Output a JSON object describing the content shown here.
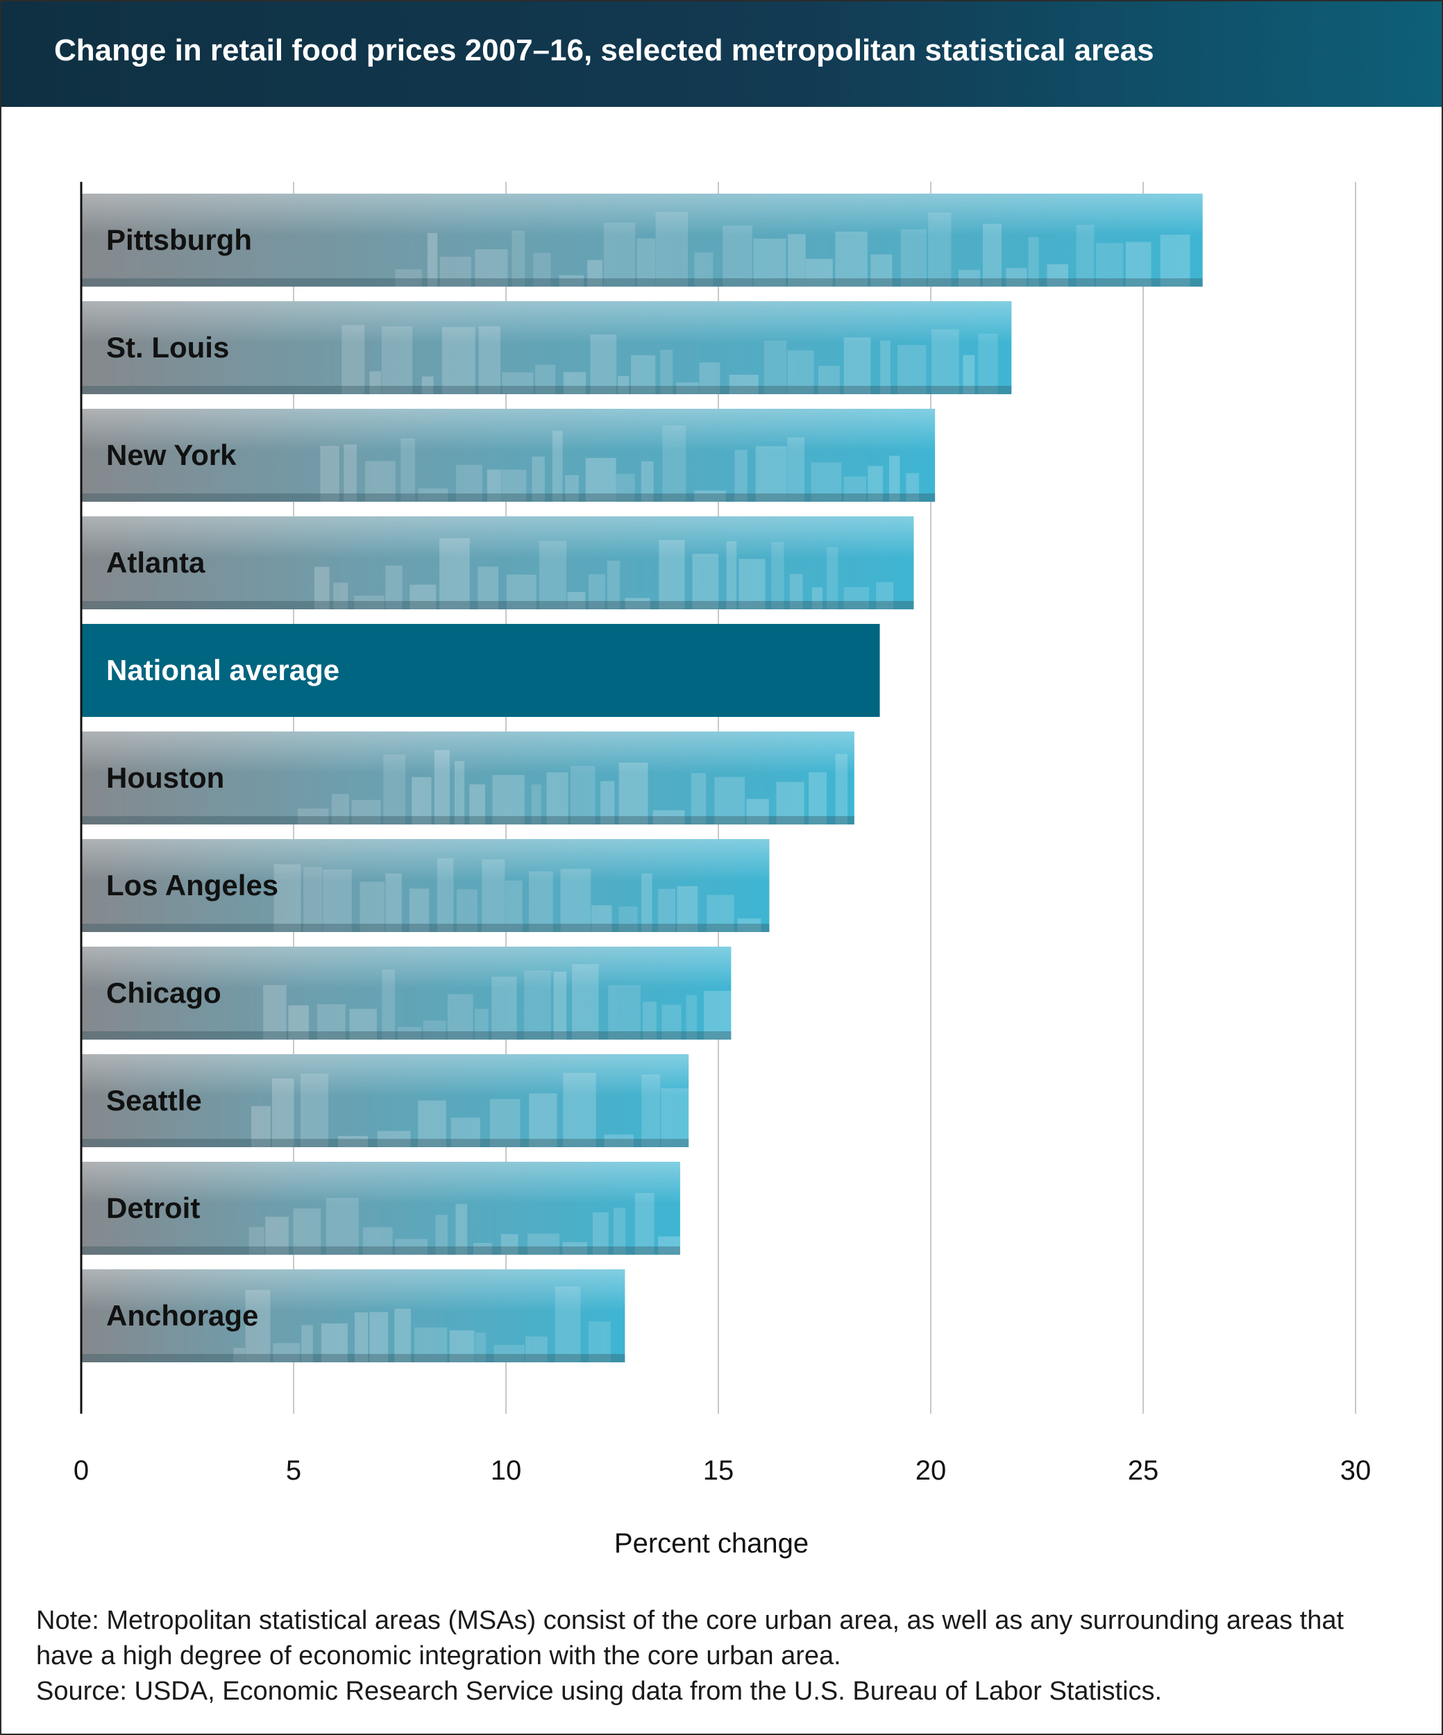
{
  "header": {
    "title": "Change in retail food prices 2007–16, selected metropolitan statistical areas"
  },
  "chart_data": {
    "type": "bar",
    "orientation": "horizontal",
    "title": "Change in retail food prices 2007–16, selected metropolitan statistical areas",
    "xlabel": "Percent change",
    "ylabel": "",
    "xlim": [
      0,
      30
    ],
    "xticks": [
      "0",
      "5",
      "10",
      "15",
      "20",
      "25",
      "30"
    ],
    "grid": true,
    "categories": [
      "Pittsburgh",
      "St. Louis",
      "New York",
      "Atlanta",
      "National average",
      "Houston",
      "Los Angeles",
      "Chicago",
      "Seattle",
      "Detroit",
      "Anchorage"
    ],
    "values": [
      26.4,
      21.9,
      20.1,
      19.6,
      18.8,
      18.2,
      16.2,
      15.3,
      14.3,
      14.1,
      12.8
    ],
    "highlight": "National average",
    "colors": {
      "highlight": "#006580",
      "city_dark": "#7e8388",
      "city_light": "#3fb5d3",
      "grid": "#c8c8c8",
      "axis": "#111111"
    }
  },
  "notes": {
    "note_line1": "Note: Metropolitan statistical areas (MSAs) consist of the core urban area, as well as any surrounding areas that",
    "note_line2": "have a high degree of economic integration with the core urban area.",
    "source": "Source: USDA, Economic Research Service using data from the U.S. Bureau of Labor Statistics."
  }
}
